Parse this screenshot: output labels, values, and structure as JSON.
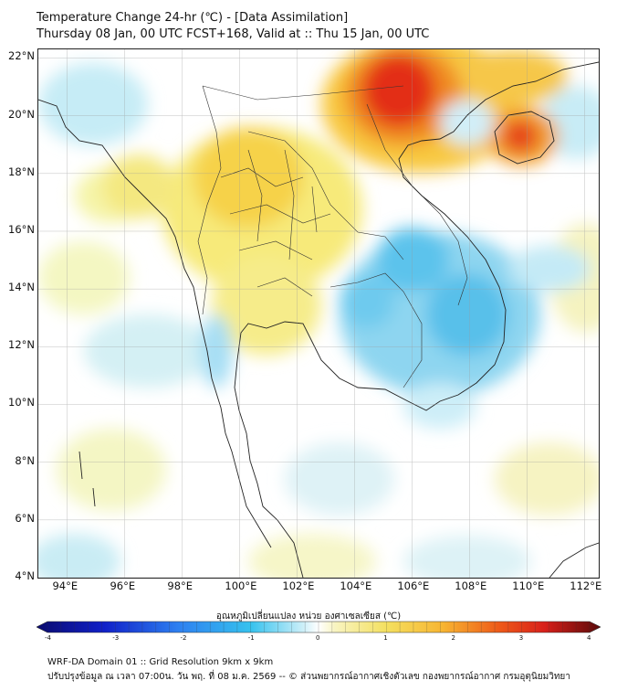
{
  "header": {
    "title": "Temperature Change 24-hr (℃) - [Data Assimilation]",
    "subtitle": "Thursday 08 Jan, 00 UTC FCST+168, Valid at :: Thu 15 Jan, 00 UTC"
  },
  "axes": {
    "lat_labels": [
      "22°N",
      "20°N",
      "18°N",
      "16°N",
      "14°N",
      "12°N",
      "10°N",
      "8°N",
      "6°N",
      "4°N"
    ],
    "lon_labels": [
      "94°E",
      "96°E",
      "98°E",
      "100°E",
      "102°E",
      "104°E",
      "106°E",
      "108°E",
      "110°E",
      "112°E"
    ],
    "lat_range": [
      4,
      22.3
    ],
    "lon_range": [
      93,
      112.5
    ]
  },
  "colorbar": {
    "label": "อุณหภูมิเปลี่ยนแปลง หน่วย องศาเซลเซียส (℃)",
    "ticks": [
      "-4",
      "-3",
      "-2",
      "-1",
      "0",
      "1",
      "2",
      "3",
      "4"
    ],
    "range": [
      -4,
      4
    ]
  },
  "field": {
    "warm_regions": [
      {
        "name": "north-vietnam-max",
        "lon": 105.5,
        "lat": 21.3,
        "value": 3.3
      },
      {
        "name": "hainan-max",
        "lon": 109.8,
        "lat": 19.3,
        "value": 3.0
      },
      {
        "name": "northern-thailand",
        "lon": 100.5,
        "lat": 18.0,
        "value": 1.5
      },
      {
        "name": "central-thailand",
        "lon": 101.0,
        "lat": 15.5,
        "value": 1.0
      }
    ],
    "cool_regions": [
      {
        "name": "cambodia",
        "lon": 105.5,
        "lat": 13.5,
        "value": -1.0
      },
      {
        "name": "south-vietnam",
        "lon": 108.0,
        "lat": 12.8,
        "value": -0.9
      },
      {
        "name": "gulf-of-tonkin",
        "lon": 108.5,
        "lat": 19.5,
        "value": -0.8
      }
    ]
  },
  "footer": {
    "line1": "WRF-DA Domain 01 :: Grid Resolution 9km x 9km",
    "line2": "ปรับปรุงข้อมูล ณ เวลา 07:00น. วัน พฤ. ที่ 08 ม.ค. 2569 -- © ส่วนพยากรณ์อากาศเชิงตัวเลข กองพยากรณ์อากาศ กรมอุตุนิยมวิทยา"
  }
}
